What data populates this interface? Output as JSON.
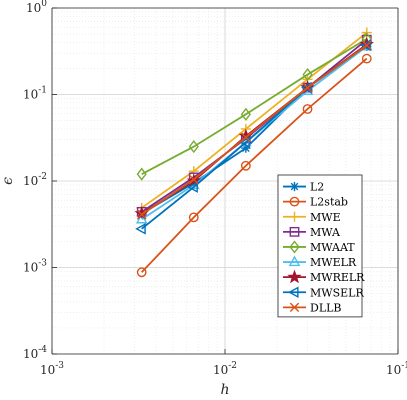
{
  "chart_data": {
    "type": "line",
    "xscale": "log",
    "yscale": "log",
    "xlim": [
      0.001,
      0.1
    ],
    "ylim": [
      0.0001,
      1
    ],
    "xlabel": "h",
    "ylabel": "ϵ",
    "grid": true,
    "legend_position": "right",
    "x_ticks": [
      {
        "value": 0.001,
        "base": "10",
        "exp": "-3"
      },
      {
        "value": 0.01,
        "base": "10",
        "exp": "-2"
      },
      {
        "value": 0.1,
        "base": "10",
        "exp": "-1"
      }
    ],
    "y_ticks": [
      {
        "value": 0.0001,
        "base": "10",
        "exp": "-4"
      },
      {
        "value": 0.001,
        "base": "10",
        "exp": "-3"
      },
      {
        "value": 0.01,
        "base": "10",
        "exp": "-2"
      },
      {
        "value": 0.1,
        "base": "10",
        "exp": "-1"
      },
      {
        "value": 1,
        "base": "10",
        "exp": "0"
      }
    ],
    "x": [
      0.0033,
      0.0066,
      0.0132,
      0.03,
      0.066
    ],
    "series": [
      {
        "name": "L2",
        "color": "#0072bd",
        "marker": "asterisk",
        "values": [
          0.0042,
          0.0095,
          0.024,
          0.12,
          0.36
        ]
      },
      {
        "name": "L2stab",
        "color": "#d95319",
        "marker": "circle",
        "values": [
          0.00088,
          0.0038,
          0.015,
          0.068,
          0.26
        ]
      },
      {
        "name": "MWE",
        "color": "#edb120",
        "marker": "plus",
        "values": [
          0.0049,
          0.013,
          0.04,
          0.15,
          0.52
        ]
      },
      {
        "name": "MWA",
        "color": "#7e2f8e",
        "marker": "square",
        "values": [
          0.0044,
          0.011,
          0.031,
          0.12,
          0.43
        ]
      },
      {
        "name": "MWAAT",
        "color": "#77ac30",
        "marker": "diamond",
        "values": [
          0.012,
          0.025,
          0.059,
          0.17,
          0.44
        ]
      },
      {
        "name": "MWELR",
        "color": "#4dbeee",
        "marker": "triangle-up",
        "values": [
          0.0036,
          0.009,
          0.028,
          0.11,
          0.36
        ]
      },
      {
        "name": "MWRELR",
        "color": "#a2142f",
        "marker": "pentagram",
        "values": [
          0.0042,
          0.01,
          0.033,
          0.12,
          0.38
        ]
      },
      {
        "name": "MWSELR",
        "color": "#0072bd",
        "marker": "triangle-left",
        "values": [
          0.0028,
          0.0085,
          0.028,
          0.12,
          0.37
        ]
      },
      {
        "name": "DLLB",
        "color": "#d95319",
        "marker": "x",
        "values": [
          0.0041,
          0.0104,
          0.032,
          0.12,
          0.37
        ]
      }
    ]
  }
}
